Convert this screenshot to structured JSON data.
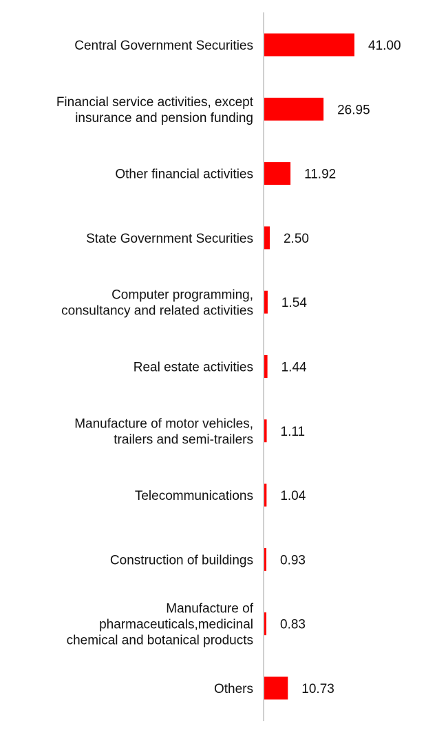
{
  "chart_data": {
    "type": "bar",
    "orientation": "horizontal",
    "title": "",
    "xlabel": "",
    "ylabel": "",
    "grid": false,
    "legend": "none",
    "bar_color": "#ff0000",
    "axis_color": "#d0d0d0",
    "xlim": [
      0,
      45
    ],
    "categories": [
      [
        "Central Government Securities"
      ],
      [
        "Financial service activities, except",
        "insurance and pension funding"
      ],
      [
        "Other financial activities"
      ],
      [
        "State Government Securities"
      ],
      [
        "Computer programming,",
        "consultancy and related activities"
      ],
      [
        "Real estate activities"
      ],
      [
        "Manufacture of motor vehicles,",
        "trailers and semi-trailers"
      ],
      [
        "Telecommunications"
      ],
      [
        "Construction of buildings"
      ],
      [
        "Manufacture of",
        "pharmaceuticals,medicinal",
        "chemical and botanical products"
      ],
      [
        "Others"
      ]
    ],
    "values": [
      41.0,
      26.95,
      11.92,
      2.5,
      1.54,
      1.44,
      1.11,
      1.04,
      0.93,
      0.83,
      10.73
    ],
    "value_labels": [
      "41.00",
      "26.95",
      "11.92",
      "2.50",
      "1.54",
      "1.44",
      "1.11",
      "1.04",
      "0.93",
      "0.83",
      "10.73"
    ]
  }
}
